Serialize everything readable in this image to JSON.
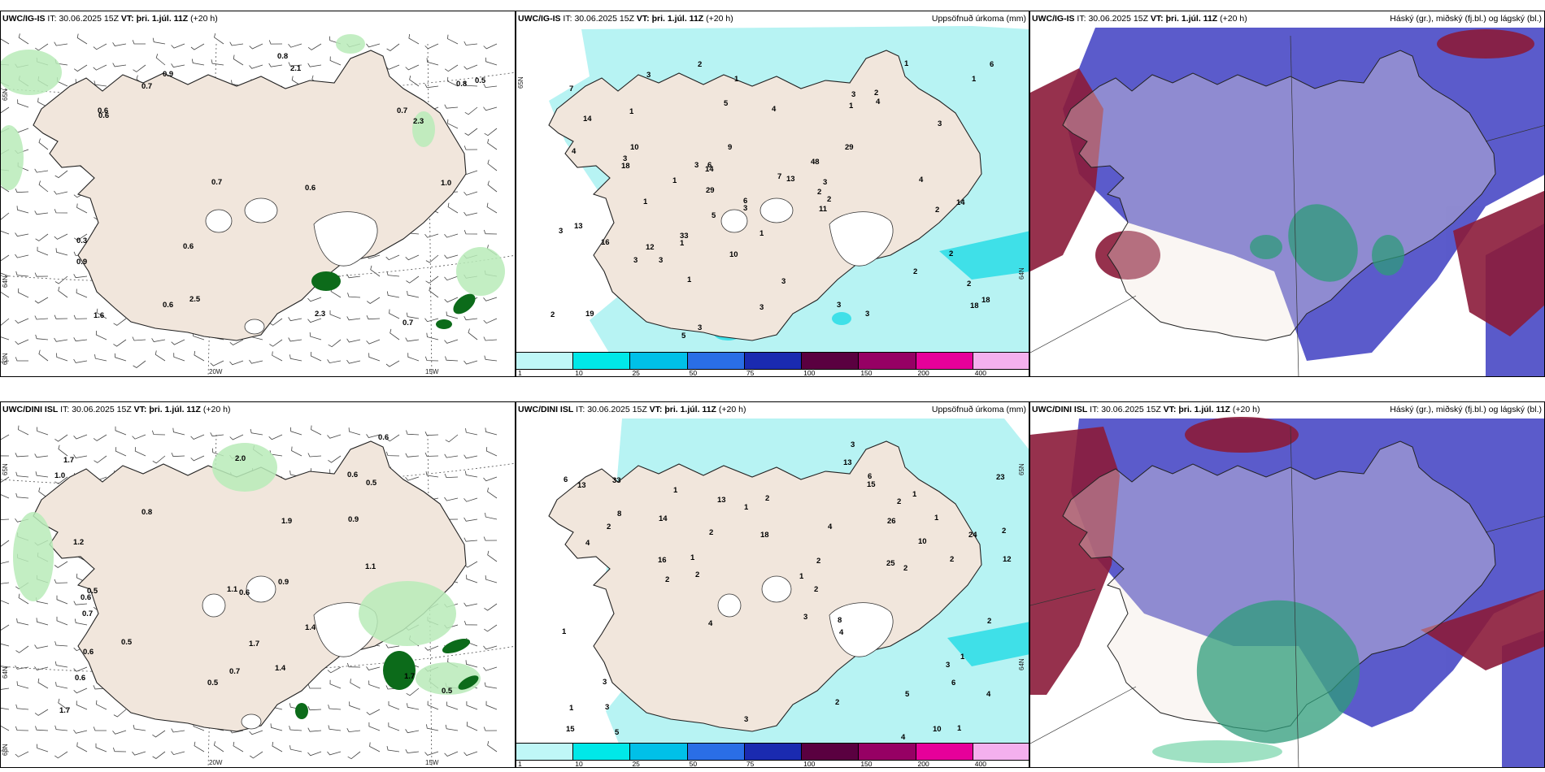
{
  "rows": [
    {
      "model": "UWC/IG-IS",
      "it_label": "IT:",
      "it_value": "30.06.2025 15Z",
      "vt_label": "VT:",
      "vt_value": "þri. 1.júl. 11Z",
      "lead": "(+20 h)",
      "left_values": [
        "0.7",
        "1.0",
        "0.7",
        "0.7",
        "0.9",
        "0.6",
        "0.6",
        "0.6",
        "0.6",
        "0.8",
        "0.7",
        "0.9",
        "0.6",
        "0.5",
        "2.5",
        "2.1",
        "1.6",
        "2.3",
        "0.8",
        "2.3",
        "0.3"
      ],
      "mid_values": [
        "3",
        "3",
        "2",
        "6",
        "2",
        "1",
        "1",
        "1",
        "2",
        "3",
        "1",
        "1",
        "18",
        "14",
        "11",
        "18",
        "14",
        "19",
        "16",
        "3",
        "2",
        "2",
        "3",
        "3",
        "3",
        "6",
        "4",
        "5",
        "1",
        "4",
        "3",
        "3",
        "2",
        "2",
        "3",
        "4",
        "5",
        "3",
        "6",
        "10",
        "18",
        "29",
        "33",
        "29",
        "13",
        "9",
        "13",
        "14",
        "7",
        "3",
        "7",
        "48",
        "10",
        "12",
        "3",
        "3",
        "5",
        "2",
        "2",
        "1",
        "1",
        "1",
        "1",
        "3",
        "4"
      ],
      "left_axis": [
        "65N",
        "64N",
        "63N",
        "20W",
        "15W"
      ],
      "mid_axis": [
        "65N",
        "64N"
      ]
    },
    {
      "model": "UWC/DINI ISL",
      "it_label": "IT:",
      "it_value": "30.06.2025 15Z",
      "vt_label": "VT:",
      "vt_value": "þri. 1.júl. 11Z",
      "lead": "(+20 h)",
      "left_values": [
        "0.6",
        "0.8",
        "0.9",
        "0.6",
        "0.9",
        "1.1",
        "1.7",
        "0.5",
        "0.6",
        "0.5",
        "0.7",
        "0.6",
        "0.7",
        "1.0",
        "0.5",
        "0.6",
        "1.4",
        "0.6",
        "1.9",
        "0.5",
        "2.0",
        "1.2",
        "1.7",
        "1.1",
        "1.7",
        "1.4",
        "0.5",
        "1.7"
      ],
      "mid_values": [
        "1",
        "2",
        "2",
        "1",
        "2",
        "2",
        "2",
        "1",
        "4",
        "3",
        "4",
        "6",
        "16",
        "8",
        "13",
        "18",
        "26",
        "15",
        "3",
        "2",
        "2",
        "1",
        "1",
        "3",
        "4",
        "2",
        "2",
        "1",
        "1",
        "2",
        "2",
        "3",
        "3",
        "4",
        "1",
        "5",
        "6",
        "10",
        "25",
        "24",
        "33",
        "12",
        "13",
        "13",
        "14",
        "4",
        "6",
        "10",
        "23",
        "8",
        "15",
        "3",
        "5",
        "2",
        "1",
        "2",
        "1",
        "4"
      ],
      "left_axis": [
        "65N",
        "64N",
        "63N",
        "20W",
        "15W"
      ],
      "mid_axis": [
        "65N",
        "64N"
      ]
    }
  ],
  "precip_title": "Uppsöfnuð úrkoma (mm)",
  "cloud_title": "Háský (gr.), miðský (fj.bl.) og lágský (bl.)",
  "colorbar": {
    "ticks": [
      "1",
      "10",
      "25",
      "50",
      "75",
      "100",
      "150",
      "200",
      "400"
    ],
    "colors": [
      "#bff7f7",
      "#00e8e8",
      "#00c0e8",
      "#2a6ee6",
      "#1a2ab0",
      "#5a0040",
      "#960064",
      "#e6009a",
      "#f4b0ee"
    ]
  },
  "colors": {
    "land": "#f1e6dc",
    "cyan_light": "#b7f3f3",
    "cyan_mid": "#3fe0e8",
    "green_light": "#c8f0c8",
    "green_dark": "#0c6b1a",
    "cloud_high": "#8b1b3a",
    "cloud_mid": "#5252c8",
    "cloud_low": "#2e9c7a"
  }
}
